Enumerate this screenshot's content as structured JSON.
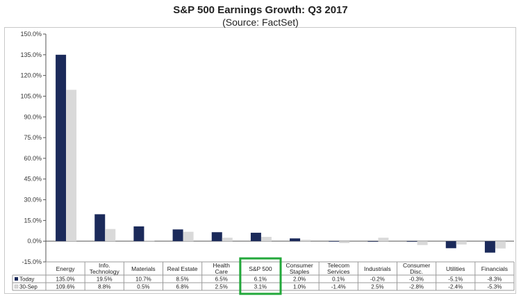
{
  "chart_data": {
    "type": "bar",
    "title": "S&P 500 Earnings Growth: Q3 2017",
    "subtitle": "(Source: FactSet)",
    "xlabel": "",
    "ylabel": "",
    "ylim": [
      -15,
      150
    ],
    "yticks": [
      "150.0%",
      "135.0%",
      "120.0%",
      "105.0%",
      "90.0%",
      "75.0%",
      "60.0%",
      "45.0%",
      "30.0%",
      "15.0%",
      "0.0%",
      "-15.0%"
    ],
    "categories": [
      [
        "Energy"
      ],
      [
        "Info.",
        "Technology"
      ],
      [
        "Materials"
      ],
      [
        "Real Estate"
      ],
      [
        "Health",
        "Care"
      ],
      [
        "S&P 500"
      ],
      [
        "Consumer",
        "Staples"
      ],
      [
        "Telecom",
        "Services"
      ],
      [
        "Industrials"
      ],
      [
        "Consumer",
        "Disc."
      ],
      [
        "Utilities"
      ],
      [
        "Financials"
      ]
    ],
    "series": [
      {
        "name": "Today",
        "color": "#1b2a5a",
        "values": [
          135.0,
          19.5,
          10.7,
          8.5,
          6.5,
          6.1,
          2.0,
          0.1,
          -0.2,
          -0.3,
          -5.1,
          -8.3
        ],
        "labels": [
          "135.0%",
          "19.5%",
          "10.7%",
          "8.5%",
          "6.5%",
          "6.1%",
          "2.0%",
          "0.1%",
          "-0.2%",
          "-0.3%",
          "-5.1%",
          "-8.3%"
        ]
      },
      {
        "name": "30-Sep",
        "color": "#d9d9d9",
        "values": [
          109.6,
          8.8,
          0.5,
          6.8,
          2.5,
          3.1,
          1.0,
          -1.4,
          2.5,
          -2.8,
          -2.4,
          -5.3
        ],
        "labels": [
          "109.6%",
          "8.8%",
          "0.5%",
          "6.8%",
          "2.5%",
          "3.1%",
          "1.0%",
          "-1.4%",
          "2.5%",
          "-2.8%",
          "-2.4%",
          "-5.3%"
        ]
      }
    ],
    "highlight_category": "S&P 500",
    "highlight_color": "#22a83a",
    "grid": false,
    "legend": "data-table-rows"
  }
}
